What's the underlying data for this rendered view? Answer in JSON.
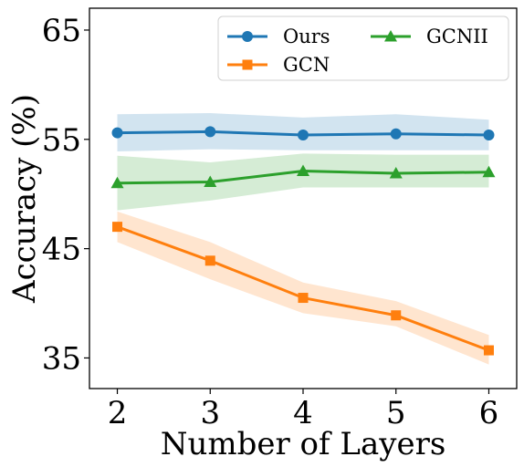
{
  "chart_data": {
    "type": "line",
    "xlabel": "Number of Layers",
    "ylabel": "Accuracy (%)",
    "x": [
      2,
      3,
      4,
      5,
      6
    ],
    "xticks": [
      "2",
      "3",
      "4",
      "5",
      "6"
    ],
    "yticks": [
      "35",
      "45",
      "55",
      "65"
    ],
    "ytick_values": [
      35,
      45,
      55,
      65
    ],
    "xlim": [
      1.7,
      6.3
    ],
    "ylim": [
      32.2,
      67
    ],
    "grid": false,
    "legend_placement": "top-right",
    "series": [
      {
        "name": "Ours",
        "color": "#1f77b4",
        "marker": "circle",
        "values": [
          55.6,
          55.7,
          55.4,
          55.5,
          55.4
        ],
        "lower": [
          53.9,
          54.1,
          54.0,
          54.0,
          54.0
        ],
        "upper": [
          57.3,
          57.4,
          57.0,
          57.3,
          56.8
        ]
      },
      {
        "name": "GCN",
        "color": "#ff7f0e",
        "marker": "square",
        "values": [
          47.0,
          43.9,
          40.5,
          38.9,
          35.7
        ],
        "lower": [
          45.6,
          42.2,
          39.1,
          37.9,
          34.4
        ],
        "upper": [
          48.4,
          45.6,
          41.9,
          40.2,
          37.1
        ]
      },
      {
        "name": "GCNII",
        "color": "#2ca02c",
        "marker": "triangle",
        "values": [
          51.0,
          51.1,
          52.1,
          51.9,
          52.0
        ],
        "lower": [
          48.5,
          49.4,
          50.6,
          50.6,
          50.6
        ],
        "upper": [
          53.5,
          52.9,
          53.7,
          53.6,
          53.6
        ]
      }
    ]
  }
}
